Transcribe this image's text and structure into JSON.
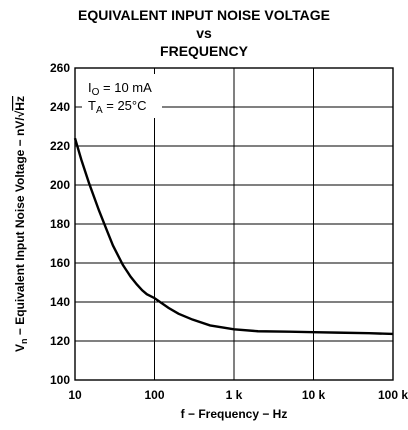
{
  "chart_data": {
    "type": "line",
    "title": "EQUIVALENT INPUT NOISE VOLTAGE",
    "title_line2": "vs",
    "title_line3": "FREQUENCY",
    "xlabel": "f − Frequency − Hz",
    "ylabel": "Vₙ − Equivalent Input Noise Voltage − nV/√Hz",
    "ylabel_parts": {
      "v": "V",
      "sub": "n",
      "rest": " − Equivalent Input Noise Voltage − nV/",
      "root": "√",
      "hz": "Hz"
    },
    "x_scale": "log",
    "xlim": [
      10,
      100000
    ],
    "ylim": [
      100,
      260
    ],
    "grid": true,
    "x_tick_labels": [
      "10",
      "100",
      "1 k",
      "10 k",
      "100 k"
    ],
    "y_tick_labels": [
      "100",
      "120",
      "140",
      "160",
      "180",
      "200",
      "220",
      "240",
      "260"
    ],
    "y_ticks": [
      100,
      120,
      140,
      160,
      180,
      200,
      220,
      240,
      260
    ],
    "annotations": [
      {
        "main": "I",
        "sub": "O",
        "rest": " = 10 mA"
      },
      {
        "main": "T",
        "sub": "A",
        "rest": " = 25°C"
      }
    ],
    "series": [
      {
        "x": [
          10,
          12,
          15,
          20,
          25,
          30,
          40,
          50,
          60,
          70,
          80,
          100,
          150,
          200,
          300,
          500,
          700,
          1000,
          2000,
          5000,
          10000,
          20000,
          50000,
          100000
        ],
        "y": [
          224,
          213,
          201,
          187,
          177,
          169,
          159,
          153,
          149,
          146,
          144,
          142,
          137,
          134,
          131,
          128,
          127,
          126,
          125,
          124.8,
          124.5,
          124.3,
          124.0,
          123.6
        ]
      }
    ],
    "line_color": "#000000"
  }
}
